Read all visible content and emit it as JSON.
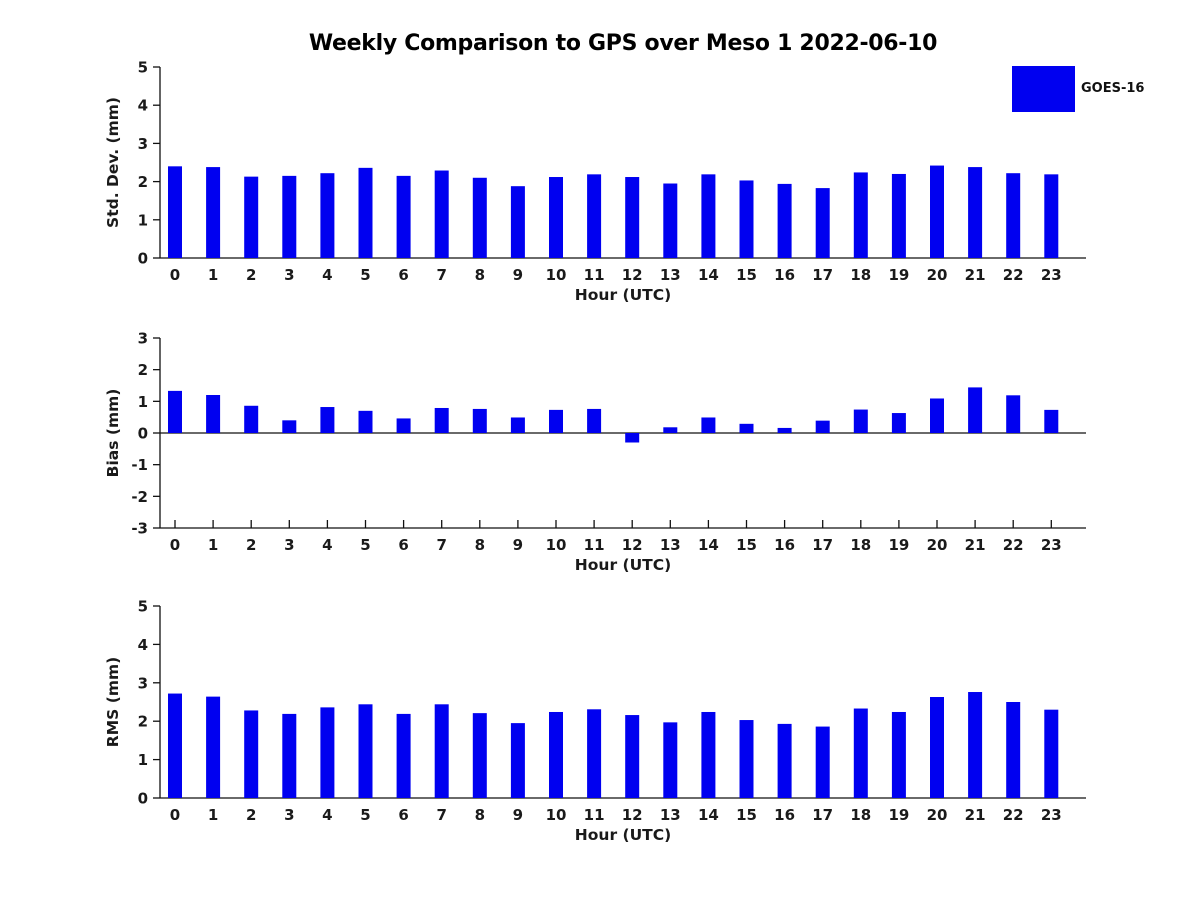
{
  "title": "Weekly Comparison to GPS over Meso 1 2022-06-10",
  "legend": {
    "label": "GOES-16",
    "swatch_color": "#0000f0",
    "position": "top-right"
  },
  "colors": {
    "bar": "#0000f0",
    "text": "#1a1a1a",
    "axis": "#111111",
    "background": "#ffffff"
  },
  "chart_data": [
    {
      "type": "bar",
      "name": "std-dev",
      "title": "",
      "xlabel": "Hour (UTC)",
      "ylabel": "Std. Dev. (mm)",
      "ylim": [
        0,
        5
      ],
      "yticks": [
        0,
        1,
        2,
        3,
        4,
        5
      ],
      "grid": false,
      "categories": [
        "0",
        "1",
        "2",
        "3",
        "4",
        "5",
        "6",
        "7",
        "8",
        "9",
        "10",
        "11",
        "12",
        "13",
        "14",
        "15",
        "16",
        "17",
        "18",
        "19",
        "20",
        "21",
        "22",
        "23"
      ],
      "series": [
        {
          "name": "GOES-16",
          "values": [
            2.4,
            2.38,
            2.13,
            2.15,
            2.22,
            2.36,
            2.15,
            2.29,
            2.1,
            1.88,
            2.12,
            2.19,
            2.12,
            1.95,
            2.19,
            2.03,
            1.94,
            1.83,
            2.24,
            2.2,
            2.42,
            2.38,
            2.22,
            2.19
          ]
        }
      ]
    },
    {
      "type": "bar",
      "name": "bias",
      "title": "",
      "xlabel": "Hour (UTC)",
      "ylabel": "Bias (mm)",
      "ylim": [
        -3,
        3
      ],
      "yticks": [
        -3,
        -2,
        -1,
        0,
        1,
        2,
        3
      ],
      "grid": false,
      "categories": [
        "0",
        "1",
        "2",
        "3",
        "4",
        "5",
        "6",
        "7",
        "8",
        "9",
        "10",
        "11",
        "12",
        "13",
        "14",
        "15",
        "16",
        "17",
        "18",
        "19",
        "20",
        "21",
        "22",
        "23"
      ],
      "series": [
        {
          "name": "GOES-16",
          "values": [
            1.33,
            1.2,
            0.86,
            0.4,
            0.82,
            0.7,
            0.46,
            0.79,
            0.76,
            0.49,
            0.73,
            0.76,
            -0.3,
            0.18,
            0.49,
            0.29,
            0.16,
            0.39,
            0.74,
            0.63,
            1.09,
            1.44,
            1.19,
            0.73
          ]
        }
      ]
    },
    {
      "type": "bar",
      "name": "rms",
      "title": "",
      "xlabel": "Hour (UTC)",
      "ylabel": "RMS (mm)",
      "ylim": [
        0,
        5
      ],
      "yticks": [
        0,
        1,
        2,
        3,
        4,
        5
      ],
      "grid": false,
      "categories": [
        "0",
        "1",
        "2",
        "3",
        "4",
        "5",
        "6",
        "7",
        "8",
        "9",
        "10",
        "11",
        "12",
        "13",
        "14",
        "15",
        "16",
        "17",
        "18",
        "19",
        "20",
        "21",
        "22",
        "23"
      ],
      "series": [
        {
          "name": "GOES-16",
          "values": [
            2.72,
            2.64,
            2.28,
            2.19,
            2.36,
            2.44,
            2.19,
            2.44,
            2.21,
            1.95,
            2.24,
            2.31,
            2.16,
            1.97,
            2.24,
            2.03,
            1.93,
            1.86,
            2.33,
            2.24,
            2.63,
            2.76,
            2.5,
            2.3
          ]
        }
      ]
    }
  ]
}
